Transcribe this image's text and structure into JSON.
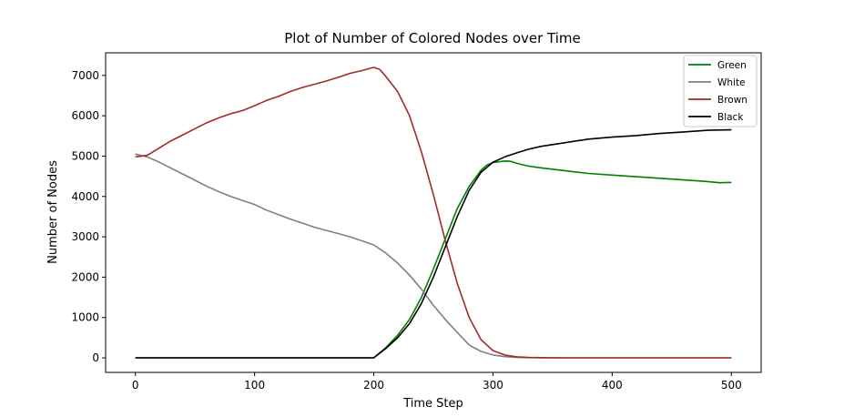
{
  "chart_data": {
    "type": "line",
    "title": "Plot of Number of Colored Nodes over Time",
    "xlabel": "Time Step",
    "ylabel": "Number of Nodes",
    "xlim": [
      -25,
      525
    ],
    "ylim": [
      -360,
      7560
    ],
    "xticks": [
      0,
      100,
      200,
      300,
      400,
      500
    ],
    "yticks": [
      0,
      1000,
      2000,
      3000,
      4000,
      5000,
      6000,
      7000
    ],
    "grid": false,
    "legend_position": "top-right",
    "series": [
      {
        "name": "Green",
        "color": "#008000",
        "x": [
          0,
          100,
          199,
          200,
          210,
          220,
          230,
          240,
          250,
          260,
          270,
          280,
          290,
          295,
          300,
          310,
          315,
          320,
          330,
          340,
          360,
          380,
          400,
          420,
          440,
          460,
          480,
          490,
          500
        ],
        "y": [
          0,
          0,
          0,
          0,
          250,
          560,
          950,
          1500,
          2200,
          2950,
          3700,
          4250,
          4650,
          4780,
          4840,
          4880,
          4870,
          4820,
          4750,
          4710,
          4640,
          4570,
          4530,
          4490,
          4450,
          4410,
          4370,
          4340,
          4350
        ]
      },
      {
        "name": "White",
        "color": "#808080",
        "x": [
          0,
          10,
          20,
          30,
          40,
          50,
          60,
          70,
          80,
          90,
          100,
          110,
          120,
          130,
          140,
          150,
          160,
          170,
          180,
          190,
          200,
          210,
          220,
          230,
          240,
          250,
          260,
          270,
          280,
          290,
          300,
          310,
          320,
          330,
          340,
          360,
          400,
          450,
          500
        ],
        "y": [
          5050,
          4980,
          4850,
          4700,
          4550,
          4400,
          4250,
          4120,
          4000,
          3900,
          3800,
          3660,
          3550,
          3440,
          3340,
          3240,
          3160,
          3080,
          3000,
          2900,
          2800,
          2600,
          2350,
          2050,
          1700,
          1300,
          950,
          630,
          320,
          160,
          70,
          30,
          10,
          5,
          2,
          0,
          0,
          0,
          0
        ]
      },
      {
        "name": "Brown",
        "color": "#a52a2a",
        "x": [
          0,
          10,
          20,
          30,
          40,
          50,
          60,
          70,
          80,
          90,
          100,
          110,
          120,
          130,
          140,
          150,
          160,
          170,
          180,
          190,
          200,
          205,
          210,
          220,
          230,
          240,
          250,
          260,
          270,
          280,
          290,
          300,
          310,
          320,
          330,
          340,
          360,
          400,
          450,
          500
        ],
        "y": [
          4980,
          5020,
          5200,
          5380,
          5530,
          5680,
          5830,
          5950,
          6050,
          6130,
          6250,
          6380,
          6480,
          6600,
          6700,
          6780,
          6860,
          6950,
          7050,
          7120,
          7200,
          7150,
          6980,
          6600,
          6000,
          5100,
          4050,
          2900,
          1850,
          1000,
          450,
          180,
          70,
          25,
          10,
          5,
          2,
          0,
          0,
          0
        ]
      },
      {
        "name": "Black",
        "color": "#000000",
        "x": [
          0,
          100,
          199,
          200,
          210,
          220,
          230,
          240,
          250,
          260,
          270,
          280,
          290,
          300,
          310,
          320,
          330,
          340,
          360,
          380,
          400,
          420,
          440,
          460,
          480,
          500
        ],
        "y": [
          0,
          0,
          0,
          0,
          230,
          500,
          850,
          1350,
          2000,
          2750,
          3500,
          4150,
          4600,
          4850,
          4980,
          5080,
          5170,
          5240,
          5330,
          5420,
          5470,
          5510,
          5560,
          5600,
          5640,
          5650
        ]
      }
    ]
  }
}
